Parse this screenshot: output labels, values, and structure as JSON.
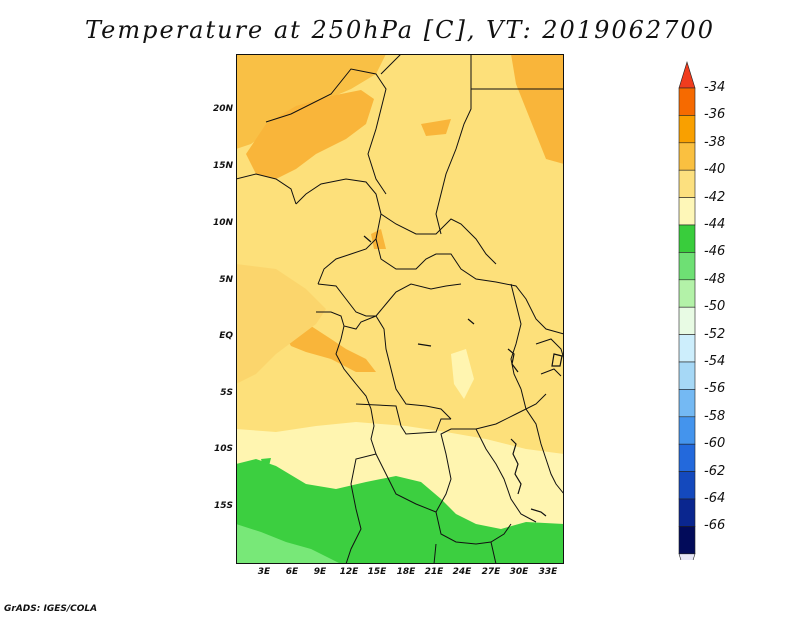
{
  "title": "Temperature at 250hPa [C], VT: 2019062700",
  "footer": "GrADS: IGES/COLA",
  "lat_labels": [
    "20N",
    "15N",
    "10N",
    "5N",
    "EQ",
    "5S",
    "10S",
    "15S"
  ],
  "lon_labels": [
    "3E",
    "6E",
    "9E",
    "12E",
    "15E",
    "18E",
    "21E",
    "24E",
    "27E",
    "30E",
    "33E"
  ],
  "colorbar": {
    "labels": [
      "-34",
      "-36",
      "-38",
      "-40",
      "-42",
      "-44",
      "-46",
      "-48",
      "-50",
      "-52",
      "-54",
      "-56",
      "-58",
      "-60",
      "-62",
      "-64",
      "-66"
    ],
    "colors": [
      "#f03c1e",
      "#f66a00",
      "#f9a000",
      "#fac040",
      "#fce07f",
      "#fef7b8",
      "#39cd3c",
      "#6ee074",
      "#b3f2a8",
      "#e8fbe4",
      "#cdeefc",
      "#a6d8f6",
      "#74b9f3",
      "#4494ed",
      "#2369dc",
      "#1449bd",
      "#0a268f",
      "#020b5a",
      "#e6e6f5"
    ]
  },
  "map_colors": {
    "c38": "#f9b53a",
    "c40": "#fde07a",
    "c42": "#fff5b0",
    "c44": "#3ccf40",
    "c46": "#78e878"
  }
}
